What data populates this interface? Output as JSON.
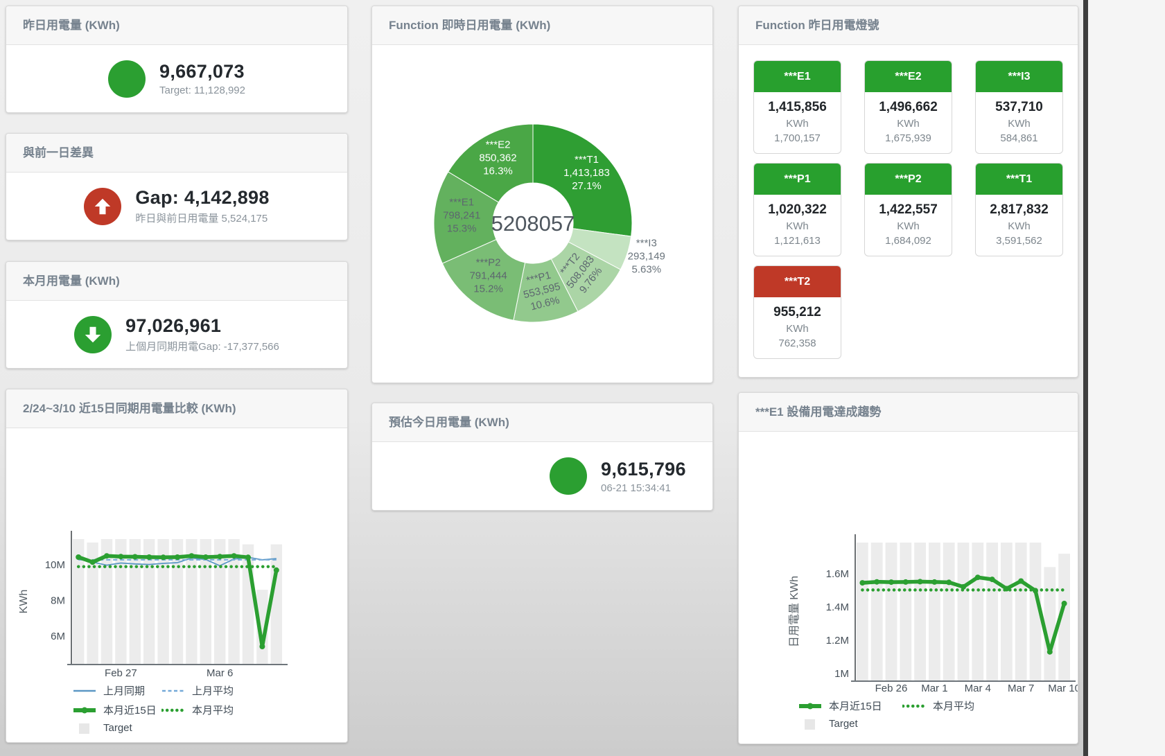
{
  "kpi_cards": [
    {
      "title": "昨日用電量 (KWh)",
      "indicator": "circle",
      "indicator_color": "#2b9f31",
      "value": "9,667,073",
      "subtext": "Target: 11,128,992"
    },
    {
      "title": "與前一日差異",
      "indicator": "arrow-up",
      "indicator_color": "#bf3927",
      "value": "Gap: 4,142,898",
      "subtext": "昨日與前日用電量 5,524,175"
    },
    {
      "title": "本月用電量 (KWh)",
      "indicator": "arrow-down",
      "indicator_color": "#2b9f31",
      "value": "97,026,961",
      "subtext": "上個月同期用電Gap: -17,377,566"
    },
    {
      "title": "預估今日用電量 (KWh)",
      "indicator": "circle",
      "indicator_color": "#2b9f31",
      "value": "9,615,796",
      "subtext": "06-21 15:34:41"
    }
  ],
  "lights": {
    "title": "Function 昨日用電燈號",
    "unit": "KWh",
    "status_colors": {
      "green": "#28a02e",
      "red": "#bf3927"
    },
    "tiles": [
      {
        "name": "***E1",
        "value": "1,415,856",
        "target": "1,700,157",
        "status": "green"
      },
      {
        "name": "***E2",
        "value": "1,496,662",
        "target": "1,675,939",
        "status": "green"
      },
      {
        "name": "***I3",
        "value": "537,710",
        "target": "584,861",
        "status": "green"
      },
      {
        "name": "***P1",
        "value": "1,020,322",
        "target": "1,121,613",
        "status": "green"
      },
      {
        "name": "***P2",
        "value": "1,422,557",
        "target": "1,684,092",
        "status": "green"
      },
      {
        "name": "***T1",
        "value": "2,817,832",
        "target": "3,591,562",
        "status": "green"
      },
      {
        "name": "***T2",
        "value": "955,212",
        "target": "762,358",
        "status": "red"
      }
    ]
  },
  "chart_data": [
    {
      "type": "pie",
      "title": "Function 即時日用電量 (KWh)",
      "center_total": "5208057",
      "legend_position": "none",
      "slices": [
        {
          "label": "***T1",
          "value": 1413183,
          "value_label": "1,413,183",
          "pct": "27.1%",
          "color": "#2f9e33",
          "text_color": "#ffffff"
        },
        {
          "label": "***I3",
          "value": 293149,
          "value_label": "293,149",
          "pct": "5.63%",
          "color": "#c4e3c1",
          "text_color": "#6a747c",
          "outside": true
        },
        {
          "label": "***T2",
          "value": 508083,
          "value_label": "508,083",
          "pct": "9.76%",
          "color": "#abd5a6",
          "text_color": "#5d676f",
          "rotate": -52
        },
        {
          "label": "***P1",
          "value": 553595,
          "value_label": "553,595",
          "pct": "10.6%",
          "color": "#92c98d",
          "text_color": "#5d676f",
          "rotate": -14
        },
        {
          "label": "***P2",
          "value": 791444,
          "value_label": "791,444",
          "pct": "15.2%",
          "color": "#7abd75",
          "text_color": "#5d676f"
        },
        {
          "label": "***E1",
          "value": 798241,
          "value_label": "798,241",
          "pct": "15.3%",
          "color": "#63b15e",
          "text_color": "#5d676f"
        },
        {
          "label": "***E2",
          "value": 850362,
          "value_label": "850,362",
          "pct": "16.3%",
          "color": "#4aa746",
          "text_color": "#ffffff"
        }
      ]
    },
    {
      "type": "line",
      "title": "2/24~3/10 近15日同期用電量比較 (KWh)",
      "ylabel": "KWh",
      "x_count": 15,
      "x_ticks": [
        {
          "index": 3,
          "label": "Feb 27"
        },
        {
          "index": 10,
          "label": "Mar 6"
        }
      ],
      "y_ticks": [
        {
          "v": 6000000,
          "label": "6M"
        },
        {
          "v": 8000000,
          "label": "8M"
        },
        {
          "v": 10000000,
          "label": "10M"
        }
      ],
      "ylim": [
        4450000,
        11440000
      ],
      "grid": false,
      "bar_color": "#ececec",
      "target_bars": [
        11440000,
        11250000,
        11440000,
        11440000,
        11440000,
        11440000,
        11440000,
        11440000,
        11440000,
        11440000,
        11440000,
        11440000,
        11150000,
        8600000,
        11150000
      ],
      "series": [
        {
          "name": "上月同期",
          "style": "solid-thin",
          "color": "#5b97c5",
          "values": [
            10500000,
            10150000,
            9980000,
            10100000,
            10050000,
            10020000,
            10080000,
            10120000,
            10380000,
            10300000,
            9950000,
            10320000,
            10420000,
            10280000,
            10350000
          ]
        },
        {
          "name": "上月平均",
          "style": "dashed",
          "color": "#74a9d8",
          "constant": 10280000
        },
        {
          "name": "本月平均",
          "style": "dotted",
          "color": "#2b9f31",
          "constant": 9900000
        },
        {
          "name": "本月近15日",
          "style": "solid-thick",
          "color": "#2b9f31",
          "values": [
            10430000,
            10150000,
            10500000,
            10460000,
            10450000,
            10430000,
            10420000,
            10430000,
            10500000,
            10430000,
            10460000,
            10500000,
            10420000,
            5420000,
            9700000
          ]
        }
      ],
      "legend": [
        {
          "label": "上月同期",
          "marker": "line",
          "color": "#5b97c5"
        },
        {
          "label": "上月平均",
          "marker": "dashed",
          "color": "#74a9d8"
        },
        {
          "label": "本月近15日",
          "marker": "thick",
          "color": "#2b9f31"
        },
        {
          "label": "本月平均",
          "marker": "dots",
          "color": "#2b9f31"
        },
        {
          "label": "Target",
          "marker": "square",
          "color": "#e7e7e7"
        }
      ]
    },
    {
      "type": "line",
      "title": "***E1 設備用電達成趨勢",
      "ylabel": "日用電量 KWh",
      "x_count": 15,
      "x_ticks": [
        {
          "index": 2,
          "label": "Feb 26"
        },
        {
          "index": 5,
          "label": "Mar 1"
        },
        {
          "index": 8,
          "label": "Mar 4"
        },
        {
          "index": 11,
          "label": "Mar 7"
        },
        {
          "index": 14,
          "label": "Mar 10"
        }
      ],
      "y_ticks": [
        {
          "v": 1000000,
          "label": "1M"
        },
        {
          "v": 1200000,
          "label": "1.2M"
        },
        {
          "v": 1400000,
          "label": "1.4M"
        },
        {
          "v": 1600000,
          "label": "1.6M"
        }
      ],
      "ylim": [
        958000,
        1787000
      ],
      "grid": false,
      "bar_color": "#ececec",
      "target_bars": [
        1790000,
        1790000,
        1790000,
        1790000,
        1790000,
        1790000,
        1790000,
        1790000,
        1790000,
        1790000,
        1790000,
        1790000,
        1790000,
        1640000,
        1720000
      ],
      "series": [
        {
          "name": "本月平均",
          "style": "dotted",
          "color": "#2b9f31",
          "constant": 1502000
        },
        {
          "name": "本月近15日",
          "style": "solid-thick",
          "color": "#2b9f31",
          "values": [
            1545000,
            1551000,
            1549000,
            1550000,
            1552000,
            1550000,
            1548000,
            1521000,
            1578000,
            1566000,
            1510000,
            1556000,
            1498000,
            1130000,
            1421000
          ]
        }
      ],
      "legend": [
        {
          "label": "本月近15日",
          "marker": "thick",
          "color": "#2b9f31"
        },
        {
          "label": "本月平均",
          "marker": "dots",
          "color": "#2b9f31"
        },
        {
          "label": "Target",
          "marker": "square",
          "color": "#e7e7e7"
        }
      ]
    }
  ]
}
